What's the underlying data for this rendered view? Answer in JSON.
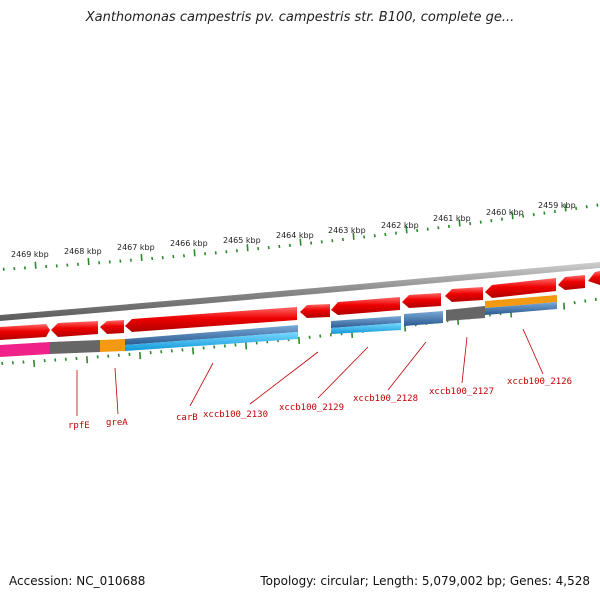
{
  "title": "Xanthomonas campestris pv. campestris str. B100, complete ge...",
  "accession": "Accession: NC_010688",
  "summary": "Topology: circular; Length: 5,079,002 bp; Genes: 4,528",
  "colors": {
    "backbone": "#8a8a8a",
    "gene_red": "#ee0000",
    "gene_gray": "#666666",
    "gene_blue": "#3a78b8",
    "gene_cyan": "#22b8ee",
    "gene_orange": "#f39a12",
    "gene_pink": "#ee2288",
    "tick": "#2a8a2a",
    "label": "#c00000"
  },
  "kbp_ticks": [
    {
      "label": "2469 kbp"
    },
    {
      "label": "2468 kbp"
    },
    {
      "label": "2467 kbp"
    },
    {
      "label": "2466 kbp"
    },
    {
      "label": "2465 kbp"
    },
    {
      "label": "2464 kbp"
    },
    {
      "label": "2463 kbp"
    },
    {
      "label": "2462 kbp"
    },
    {
      "label": "2461 kbp"
    },
    {
      "label": "2460 kbp"
    },
    {
      "label": "2459 kbp"
    }
  ],
  "gene_labels": [
    {
      "label": "rpfE"
    },
    {
      "label": "greA"
    },
    {
      "label": "carB"
    },
    {
      "label": "xccb100_2130"
    },
    {
      "label": "xccb100_2129"
    },
    {
      "label": "xccb100_2128"
    },
    {
      "label": "xccb100_2127"
    },
    {
      "label": "xccb100_2126"
    }
  ]
}
